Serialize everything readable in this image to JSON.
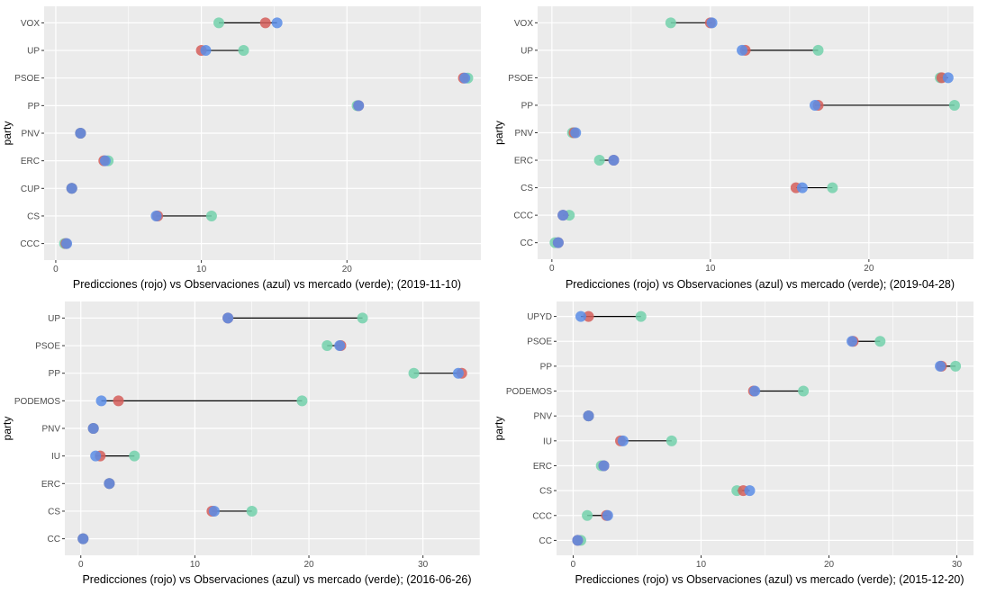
{
  "colors": {
    "prediction": "#D55E5A",
    "observation": "#5A8DE6",
    "market": "#73D1AC",
    "panel_bg": "#EBEBEB",
    "grid": "#FFFFFF",
    "segment": "#000000"
  },
  "chart_data": [
    {
      "type": "scatter",
      "subtype": "dumbbell",
      "title": "",
      "xlabel": "Predicciones (rojo) vs  Observaciones (azul) vs mercado (verde); (2019-11-10)",
      "ylabel": "party",
      "xlim": [
        -0.8,
        29.2
      ],
      "xticks": [
        0,
        10,
        20
      ],
      "xtick_labels": [
        "0",
        "10",
        "20"
      ],
      "grid": true,
      "categories": [
        "VOX",
        "UP",
        "PSOE",
        "PP",
        "PNV",
        "ERC",
        "CUP",
        "CS",
        "CCC"
      ],
      "series": [
        {
          "name": "Predicciones (rojo)",
          "color_key": "prediction",
          "values": [
            14.4,
            10.0,
            28.0,
            20.8,
            1.7,
            3.3,
            1.1,
            7.0,
            0.7
          ]
        },
        {
          "name": "Observaciones (azul)",
          "color_key": "observation",
          "values": [
            15.2,
            10.3,
            28.1,
            20.8,
            1.7,
            3.4,
            1.1,
            6.9,
            0.75
          ]
        },
        {
          "name": "mercado (verde)",
          "color_key": "market",
          "values": [
            11.2,
            12.9,
            28.3,
            20.7,
            1.7,
            3.6,
            1.1,
            10.7,
            0.6
          ]
        }
      ]
    },
    {
      "type": "scatter",
      "subtype": "dumbbell",
      "title": "",
      "xlabel": "Predicciones (rojo) vs  Observaciones (azul) vs mercado (verde); (2019-04-28)",
      "ylabel": "party",
      "xlim": [
        -0.9,
        26.6
      ],
      "xticks": [
        0,
        10,
        20
      ],
      "xtick_labels": [
        "0",
        "10",
        "20"
      ],
      "grid": true,
      "categories": [
        "VOX",
        "UP",
        "PSOE",
        "PP",
        "PNV",
        "ERC",
        "CS",
        "CCC",
        "CC"
      ],
      "series": [
        {
          "name": "Predicciones (rojo)",
          "color_key": "prediction",
          "values": [
            10.0,
            12.2,
            24.6,
            16.8,
            1.4,
            3.9,
            15.4,
            0.7,
            0.4
          ]
        },
        {
          "name": "Observaciones (azul)",
          "color_key": "observation",
          "values": [
            10.1,
            12.0,
            25.0,
            16.6,
            1.5,
            3.9,
            15.8,
            0.7,
            0.4
          ]
        },
        {
          "name": "mercado (verde)",
          "color_key": "market",
          "values": [
            7.5,
            16.8,
            24.5,
            25.4,
            1.3,
            3.0,
            17.7,
            1.1,
            0.2
          ]
        }
      ]
    },
    {
      "type": "scatter",
      "subtype": "dumbbell",
      "title": "",
      "xlabel": "Predicciones (rojo) vs  Observaciones (azul) vs mercado (verde); (2016-06-26)",
      "ylabel": "party",
      "xlim": [
        -1.4,
        35.0
      ],
      "xticks": [
        0,
        10,
        20,
        30
      ],
      "xtick_labels": [
        "0",
        "10",
        "20",
        "30"
      ],
      "grid": true,
      "categories": [
        "UP",
        "PSOE",
        "PP",
        "PODEMOS",
        "PNV",
        "IU",
        "ERC",
        "CS",
        "CC"
      ],
      "series": [
        {
          "name": "Predicciones (rojo)",
          "color_key": "prediction",
          "values": [
            12.9,
            22.8,
            33.4,
            3.3,
            1.1,
            1.7,
            2.5,
            11.5,
            0.2
          ]
        },
        {
          "name": "Observaciones (azul)",
          "color_key": "observation",
          "values": [
            12.9,
            22.7,
            33.1,
            1.8,
            1.1,
            1.3,
            2.5,
            11.7,
            0.2
          ]
        },
        {
          "name": "mercado (verde)",
          "color_key": "market",
          "values": [
            24.7,
            21.6,
            29.2,
            19.4,
            1.1,
            4.7,
            2.5,
            15.0,
            0.2
          ]
        }
      ]
    },
    {
      "type": "scatter",
      "subtype": "dumbbell",
      "title": "",
      "xlabel": "Predicciones (rojo) vs  Observaciones (azul) vs mercado (verde); (2015-12-20)",
      "ylabel": "party",
      "xlim": [
        -1.3,
        31.3
      ],
      "xticks": [
        0,
        10,
        20,
        30
      ],
      "xtick_labels": [
        "0",
        "10",
        "20",
        "30"
      ],
      "grid": true,
      "categories": [
        "UPYD",
        "PSOE",
        "PP",
        "PODEMOS",
        "PNV",
        "IU",
        "ERC",
        "CS",
        "CCC",
        "CC"
      ],
      "series": [
        {
          "name": "Predicciones (rojo)",
          "color_key": "prediction",
          "values": [
            1.2,
            21.9,
            28.8,
            14.1,
            1.2,
            3.7,
            2.4,
            13.3,
            2.6,
            0.35
          ]
        },
        {
          "name": "Observaciones (azul)",
          "color_key": "observation",
          "values": [
            0.6,
            21.8,
            28.7,
            14.2,
            1.2,
            3.9,
            2.4,
            13.8,
            2.7,
            0.35
          ]
        },
        {
          "name": "mercado (verde)",
          "color_key": "market",
          "values": [
            5.3,
            24.0,
            29.9,
            18.0,
            1.2,
            7.7,
            2.2,
            12.8,
            1.1,
            0.6
          ]
        }
      ]
    }
  ]
}
